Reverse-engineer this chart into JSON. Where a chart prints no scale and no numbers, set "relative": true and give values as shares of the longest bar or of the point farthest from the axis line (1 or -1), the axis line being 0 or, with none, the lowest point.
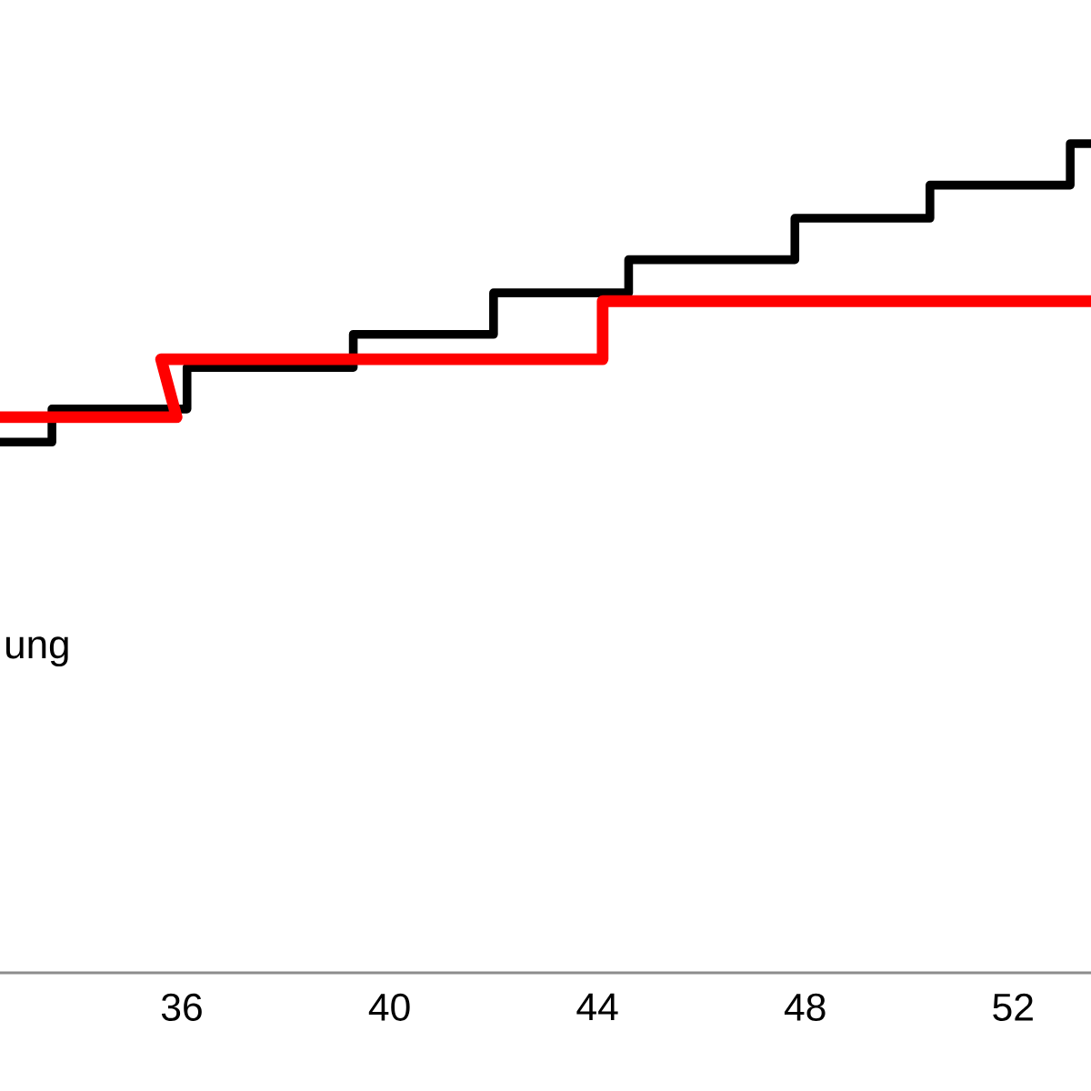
{
  "chart_data": {
    "type": "step",
    "relative": true,
    "xlim": [
      32.5,
      53.5
    ],
    "xticks": [
      36,
      40,
      44,
      48,
      52
    ],
    "annotations": [
      "ung"
    ],
    "series": [
      {
        "color": "#000000",
        "x": [
          32.5,
          33.5,
          36.1,
          39.3,
          42.0,
          44.6,
          47.8,
          50.4,
          53.1,
          53.5
        ],
        "values": [
          0.64,
          0.68,
          0.73,
          0.77,
          0.82,
          0.86,
          0.91,
          0.95,
          1,
          1
        ]
      },
      {
        "type": "line",
        "color": "#ff0000",
        "x": [
          32.5,
          35.9,
          35.6,
          44.1,
          44.1,
          53.5
        ],
        "values": [
          0.67,
          0.67,
          0.74,
          0.74,
          0.81,
          0.81
        ]
      }
    ]
  }
}
